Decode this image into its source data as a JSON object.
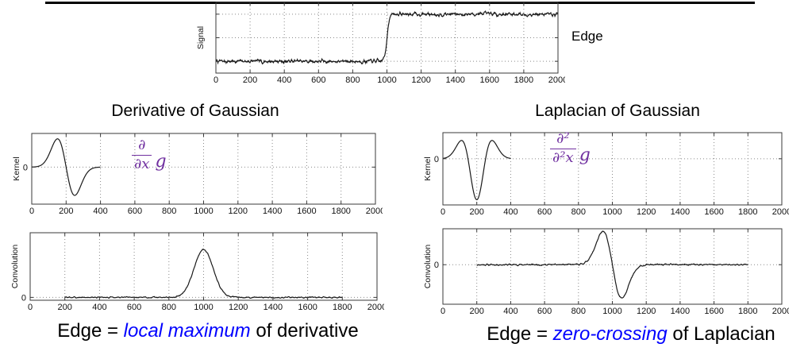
{
  "labels": {
    "edge": "Edge"
  },
  "left": {
    "title": "Derivative of Gaussian",
    "formula": {
      "numerator": "∂",
      "denominator": "∂x",
      "function": "g"
    }
  },
  "right": {
    "title": "Laplacian of Gaussian",
    "formula": {
      "numerator": "∂²",
      "denominator": "∂²x",
      "function": "g"
    }
  },
  "captions": {
    "left": [
      {
        "text": "Edge = ",
        "em": false
      },
      {
        "text": "local maximum",
        "em": true
      },
      {
        "text": " of derivative",
        "em": false
      }
    ],
    "right": [
      {
        "text": "Edge = ",
        "em": false
      },
      {
        "text": "zero-crossing",
        "em": true
      },
      {
        "text": " of Laplacian",
        "em": false
      }
    ]
  },
  "colors": {
    "formula_purple": "#7030a0",
    "emphasis_blue": "#0000ff",
    "curve": "#1a1a1a",
    "grid": "#8a8a8a",
    "axis": "#3a3a3a",
    "tick_text": "#111111"
  },
  "chart_data": [
    {
      "id": "signal",
      "type": "line",
      "title": "",
      "xlabel": "",
      "ylabel": "Signal",
      "xlim": [
        0,
        2000
      ],
      "xticks": [
        0,
        200,
        400,
        600,
        800,
        1000,
        1200,
        1400,
        1600,
        1800,
        2000
      ],
      "ylim": [
        0,
        1.2
      ],
      "ygrid": [
        0.2,
        0.6,
        1.0
      ],
      "zero_label": "",
      "grid": true,
      "series": [
        {
          "name": "noisy step edge",
          "generator": {
            "kind": "noisy_step",
            "low": 0.2,
            "high": 1.0,
            "edge_x": 1000,
            "rise": 14,
            "noise_amp": 0.03,
            "x_start": 0,
            "x_end": 2000,
            "step": 2,
            "seed": 7
          }
        }
      ]
    },
    {
      "id": "kernel_dog",
      "type": "line",
      "title": "",
      "xlabel": "",
      "ylabel": "Kernel",
      "xlim": [
        0,
        2000
      ],
      "xticks": [
        0,
        200,
        400,
        600,
        800,
        1000,
        1200,
        1400,
        1600,
        1800,
        2000
      ],
      "ylim": [
        -0.55,
        0.5
      ],
      "ygrid": [
        0
      ],
      "zero_label": "0",
      "grid": true,
      "series": [
        {
          "name": "derivative of Gaussian kernel",
          "generator": {
            "kind": "gaussian_derivative",
            "center": 200,
            "sigma": 50,
            "amplitude": 0.42,
            "x_start": 0,
            "x_end": 400,
            "step": 2
          }
        }
      ]
    },
    {
      "id": "kernel_log",
      "type": "line",
      "title": "",
      "xlabel": "",
      "ylabel": "Kernel",
      "xlim": [
        0,
        2000
      ],
      "xticks": [
        0,
        200,
        400,
        600,
        800,
        1000,
        1200,
        1400,
        1600,
        1800,
        2000
      ],
      "ylim": [
        -0.62,
        0.35
      ],
      "ygrid": [
        0
      ],
      "zero_label": "0",
      "grid": true,
      "series": [
        {
          "name": "Laplacian of Gaussian kernel",
          "generator": {
            "kind": "laplacian_of_gaussian",
            "center": 200,
            "sigma": 52,
            "amplitude": 0.55,
            "x_start": 0,
            "x_end": 400,
            "step": 2
          }
        }
      ]
    },
    {
      "id": "conv_dog",
      "type": "line",
      "title": "",
      "xlabel": "",
      "ylabel": "Convolution",
      "xlim": [
        0,
        2000
      ],
      "xticks": [
        0,
        200,
        400,
        600,
        800,
        1000,
        1200,
        1400,
        1600,
        1800,
        2000
      ],
      "ylim": [
        -0.06,
        1.35
      ],
      "ygrid": [
        0
      ],
      "zero_label": "0",
      "grid": true,
      "series": [
        {
          "name": "signal convolved with derivative of Gaussian (local maximum at 1000)",
          "generator": {
            "kind": "gaussian",
            "center": 1000,
            "sigma": 55,
            "amplitude": 1.0,
            "noise_amp": 0.012,
            "x_start": 200,
            "x_end": 1800,
            "step": 2,
            "seed": 3
          }
        }
      ]
    },
    {
      "id": "conv_log",
      "type": "line",
      "title": "",
      "xlabel": "",
      "ylabel": "Convolution",
      "xlim": [
        0,
        2000
      ],
      "xticks": [
        0,
        200,
        400,
        600,
        800,
        1000,
        1200,
        1400,
        1600,
        1800,
        2000
      ],
      "ylim": [
        -0.55,
        0.5
      ],
      "ygrid": [
        0
      ],
      "zero_label": "0",
      "grid": true,
      "series": [
        {
          "name": "signal convolved with Laplacian of Gaussian (zero-crossing at 1000)",
          "generator": {
            "kind": "gaussian_derivative",
            "center": 1000,
            "sigma": 55,
            "amplitude": 0.46,
            "noise_amp": 0.01,
            "x_start": 200,
            "x_end": 1800,
            "step": 2,
            "seed": 11
          }
        }
      ]
    }
  ]
}
